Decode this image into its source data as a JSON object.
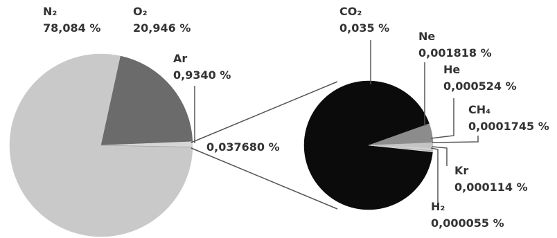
{
  "chart_data": [
    {
      "type": "pie",
      "categories": [
        "N₂",
        "O₂",
        "Ar",
        null
      ],
      "values": [
        78.084,
        20.946,
        0.934,
        0.03768
      ],
      "value_labels": [
        "78,084 %",
        "20,946 %",
        "0,9340 %",
        "0,037680 %"
      ],
      "colors": [
        "#c9c9c9",
        "#6b6b6b",
        "#d6d6d6",
        "#a0a0a0"
      ]
    },
    {
      "type": "pie",
      "categories": [
        "CO₂",
        "Ne",
        "He",
        "CH₄",
        "Kr",
        "H₂"
      ],
      "values": [
        0.035,
        0.001818,
        0.000524,
        0.0001745,
        0.000114,
        5.5e-05
      ],
      "value_labels": [
        "0,035 %",
        "0,001818 %",
        "0,000524 %",
        "0,0001745 %",
        "0,000114 %",
        "0,000055 %"
      ],
      "colors": [
        "#0b0b0b",
        "#8c8c8c",
        "#c4c4c4",
        "#d2d2d2",
        "#bababa",
        "#d8d8d8"
      ]
    }
  ]
}
